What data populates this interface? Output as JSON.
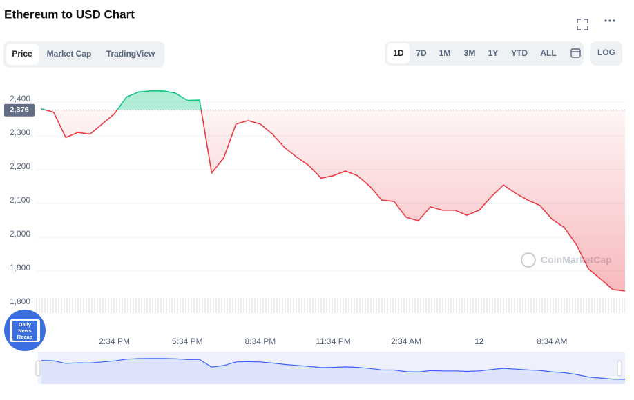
{
  "header": {
    "title": "Ethereum to USD Chart"
  },
  "controls": {
    "tabs": [
      "Price",
      "Market Cap",
      "TradingView"
    ],
    "ranges": [
      "1D",
      "7D",
      "1M",
      "3M",
      "1Y",
      "YTD",
      "ALL"
    ],
    "log": "LOG"
  },
  "watermark": "CoinMarketCap",
  "badge": [
    "Daily",
    "News",
    "Recap"
  ],
  "chart_data": {
    "type": "line",
    "categories": [
      null,
      null,
      null,
      null,
      null,
      null,
      "2:34 PM",
      null,
      null,
      null,
      null,
      null,
      "5:34 PM",
      null,
      null,
      null,
      null,
      null,
      "8:34 PM",
      null,
      null,
      null,
      null,
      null,
      "11:34 PM",
      null,
      null,
      null,
      null,
      null,
      "2:34 AM",
      null,
      null,
      null,
      null,
      null,
      "12",
      null,
      null,
      null,
      null,
      null,
      "8:34 AM",
      null,
      null,
      null,
      null,
      null,
      null
    ],
    "series": [
      {
        "name": "Price",
        "color": "#ea3943",
        "up_color": "#16c784",
        "values": [
          2380,
          2370,
          2295,
          2310,
          2305,
          2335,
          2365,
          2415,
          2430,
          2433,
          2433,
          2427,
          2405,
          2406,
          2190,
          2235,
          2335,
          2345,
          2335,
          2305,
          2265,
          2237,
          2212,
          2175,
          2182,
          2196,
          2182,
          2151,
          2110,
          2106,
          2059,
          2049,
          2090,
          2080,
          2080,
          2065,
          2080,
          2120,
          2155,
          2130,
          2110,
          2094,
          2053,
          2029,
          1978,
          1906,
          1876,
          1845,
          1841
        ]
      }
    ],
    "baseline": {
      "value": 2376,
      "label": "2,376"
    },
    "ylim": [
      1780,
      2470
    ],
    "yticks": [
      {
        "value": 1800,
        "label": "1,800"
      },
      {
        "value": 1900,
        "label": "1,900"
      },
      {
        "value": 2000,
        "label": "2,000"
      },
      {
        "value": 2100,
        "label": "2,100"
      },
      {
        "value": 2200,
        "label": "2,200"
      },
      {
        "value": 2300,
        "label": "2,300"
      },
      {
        "value": 2400,
        "label": "2,400"
      }
    ],
    "grid": true,
    "navigator_color": "#3861fb"
  }
}
